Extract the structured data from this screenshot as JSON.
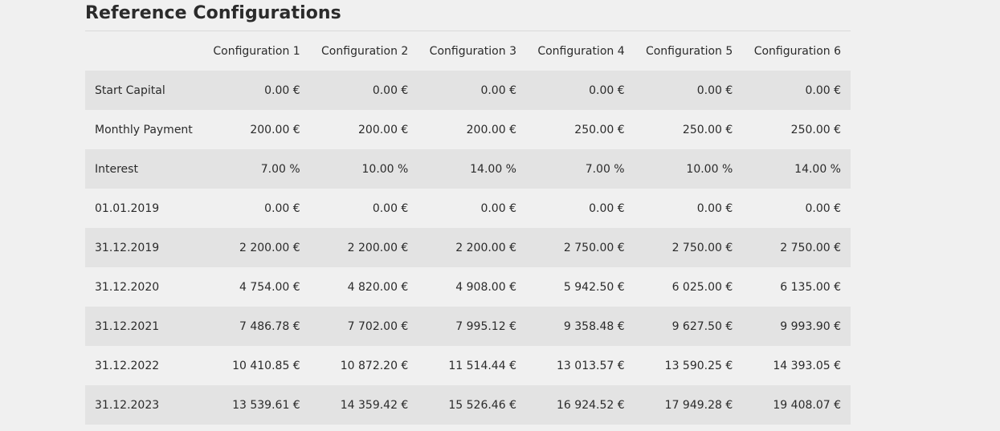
{
  "section": {
    "title": "Reference Configurations"
  },
  "table": {
    "headers": [
      "Configuration 1",
      "Configuration 2",
      "Configuration 3",
      "Configuration 4",
      "Configuration 5",
      "Configuration 6"
    ],
    "rows": [
      {
        "label": "Start Capital",
        "cells": [
          "0.00 €",
          "0.00 €",
          "0.00 €",
          "0.00 €",
          "0.00 €",
          "0.00 €"
        ]
      },
      {
        "label": "Monthly Payment",
        "cells": [
          "200.00 €",
          "200.00 €",
          "200.00 €",
          "250.00 €",
          "250.00 €",
          "250.00 €"
        ]
      },
      {
        "label": "Interest",
        "cells": [
          "7.00 %",
          "10.00 %",
          "14.00 %",
          "7.00 %",
          "10.00 %",
          "14.00 %"
        ]
      },
      {
        "label": "01.01.2019",
        "cells": [
          "0.00 €",
          "0.00 €",
          "0.00 €",
          "0.00 €",
          "0.00 €",
          "0.00 €"
        ]
      },
      {
        "label": "31.12.2019",
        "cells": [
          "2 200.00 €",
          "2 200.00 €",
          "2 200.00 €",
          "2 750.00 €",
          "2 750.00 €",
          "2 750.00 €"
        ]
      },
      {
        "label": "31.12.2020",
        "cells": [
          "4 754.00 €",
          "4 820.00 €",
          "4 908.00 €",
          "5 942.50 €",
          "6 025.00 €",
          "6 135.00 €"
        ]
      },
      {
        "label": "31.12.2021",
        "cells": [
          "7 486.78 €",
          "7 702.00 €",
          "7 995.12 €",
          "9 358.48 €",
          "9 627.50 €",
          "9 993.90 €"
        ]
      },
      {
        "label": "31.12.2022",
        "cells": [
          "10 410.85 €",
          "10 872.20 €",
          "11 514.44 €",
          "13 013.57 €",
          "13 590.25 €",
          "14 393.05 €"
        ]
      },
      {
        "label": "31.12.2023",
        "cells": [
          "13 539.61 €",
          "14 359.42 €",
          "15 526.46 €",
          "16 924.52 €",
          "17 949.28 €",
          "19 408.07 €"
        ]
      }
    ]
  },
  "colors": {
    "page_background": "#f0f0f0",
    "row_stripe": "#e3e3e3",
    "text": "#2b2b2b"
  }
}
